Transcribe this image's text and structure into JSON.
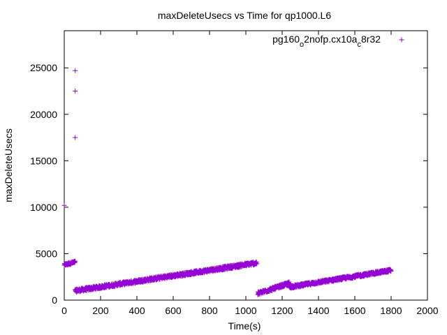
{
  "chart_data": {
    "type": "scatter",
    "title": "maxDeleteUsecs vs Time for qp1000.L6",
    "xlabel": "Time(s)",
    "ylabel": "maxDeleteUsecs",
    "xlim": [
      0,
      2000
    ],
    "ylim": [
      0,
      29000
    ],
    "xticks": [
      "0",
      "200",
      "400",
      "600",
      "800",
      "1000",
      "1200",
      "1400",
      "1600",
      "1800",
      "2000"
    ],
    "yticks": [
      "0",
      "5000",
      "10000",
      "15000",
      "20000",
      "25000"
    ],
    "grid": false,
    "legend_position": "top-right",
    "marker": "+",
    "colors": {
      "series": "#9400d3",
      "axes": "#000000",
      "background": "#ffffff"
    },
    "series": [
      {
        "name_parts": [
          {
            "text": "pg160",
            "sub": false
          },
          {
            "text": "o",
            "sub": true
          },
          {
            "text": "2nofp.cx10a",
            "sub": false
          },
          {
            "text": "c",
            "sub": true
          },
          {
            "text": "8r32",
            "sub": false
          }
        ],
        "segments": [
          {
            "x_from": 0,
            "x_to": 60,
            "y_from": 3800,
            "y_to": 4100,
            "spread": 250
          },
          {
            "x_from": 60,
            "x_to": 1060,
            "y_from": 1000,
            "y_to": 4000,
            "spread": 350
          },
          {
            "x_from": 1065,
            "x_to": 1240,
            "y_from": 700,
            "y_to": 1800,
            "spread": 350
          },
          {
            "x_from": 1240,
            "x_to": 1800,
            "y_from": 1400,
            "y_to": 3200,
            "spread": 300
          }
        ],
        "outliers": [
          {
            "x": 0,
            "y": 10200
          },
          {
            "x": 60,
            "y": 17500
          },
          {
            "x": 60,
            "y": 22500
          },
          {
            "x": 60,
            "y": 24700
          }
        ]
      }
    ]
  }
}
